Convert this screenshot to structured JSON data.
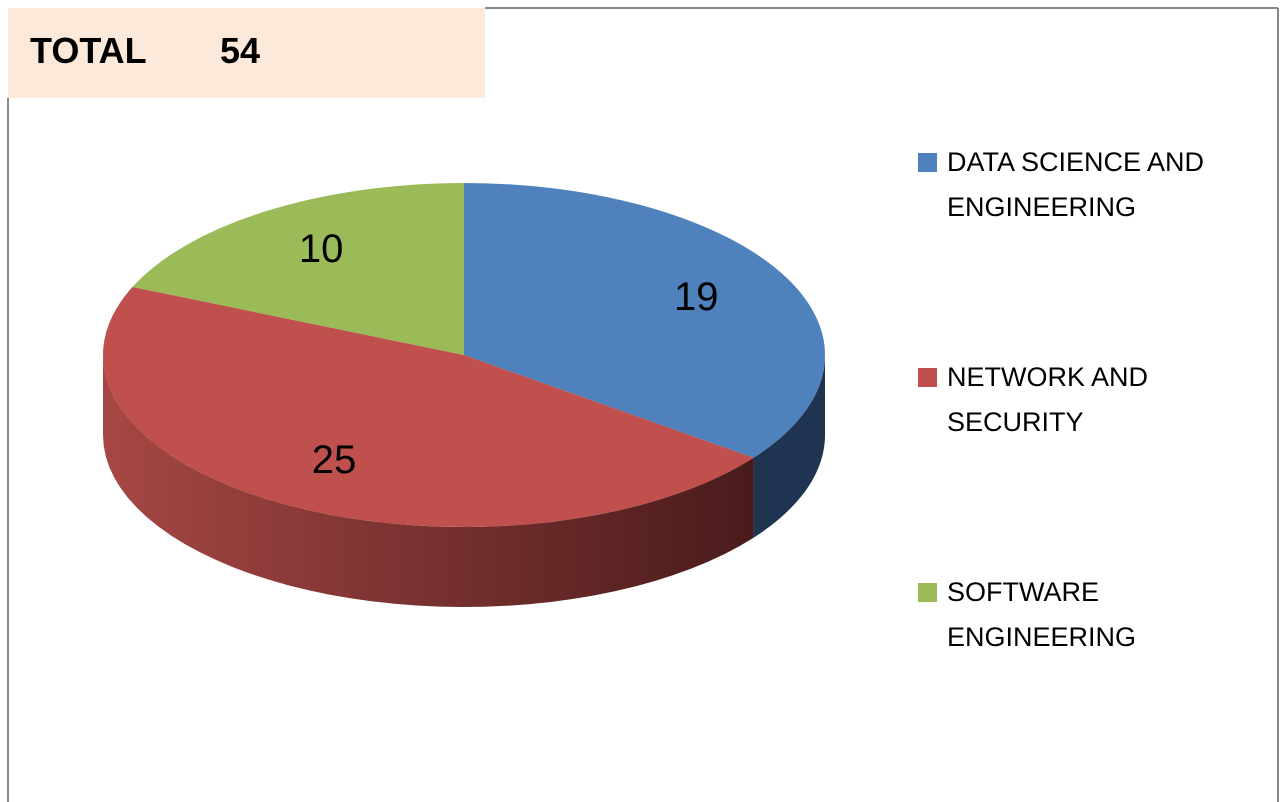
{
  "chart_data": {
    "type": "pie",
    "total_label": "TOTAL",
    "total": 54,
    "categories": [
      "DATA SCIENCE AND ENGINEERING",
      "NETWORK AND SECURITY",
      "SOFTWARE ENGINEERING"
    ],
    "values": [
      19,
      25,
      10
    ],
    "colors": [
      "#4f81bd",
      "#c0504d",
      "#9bbb59"
    ],
    "legend": "right"
  }
}
